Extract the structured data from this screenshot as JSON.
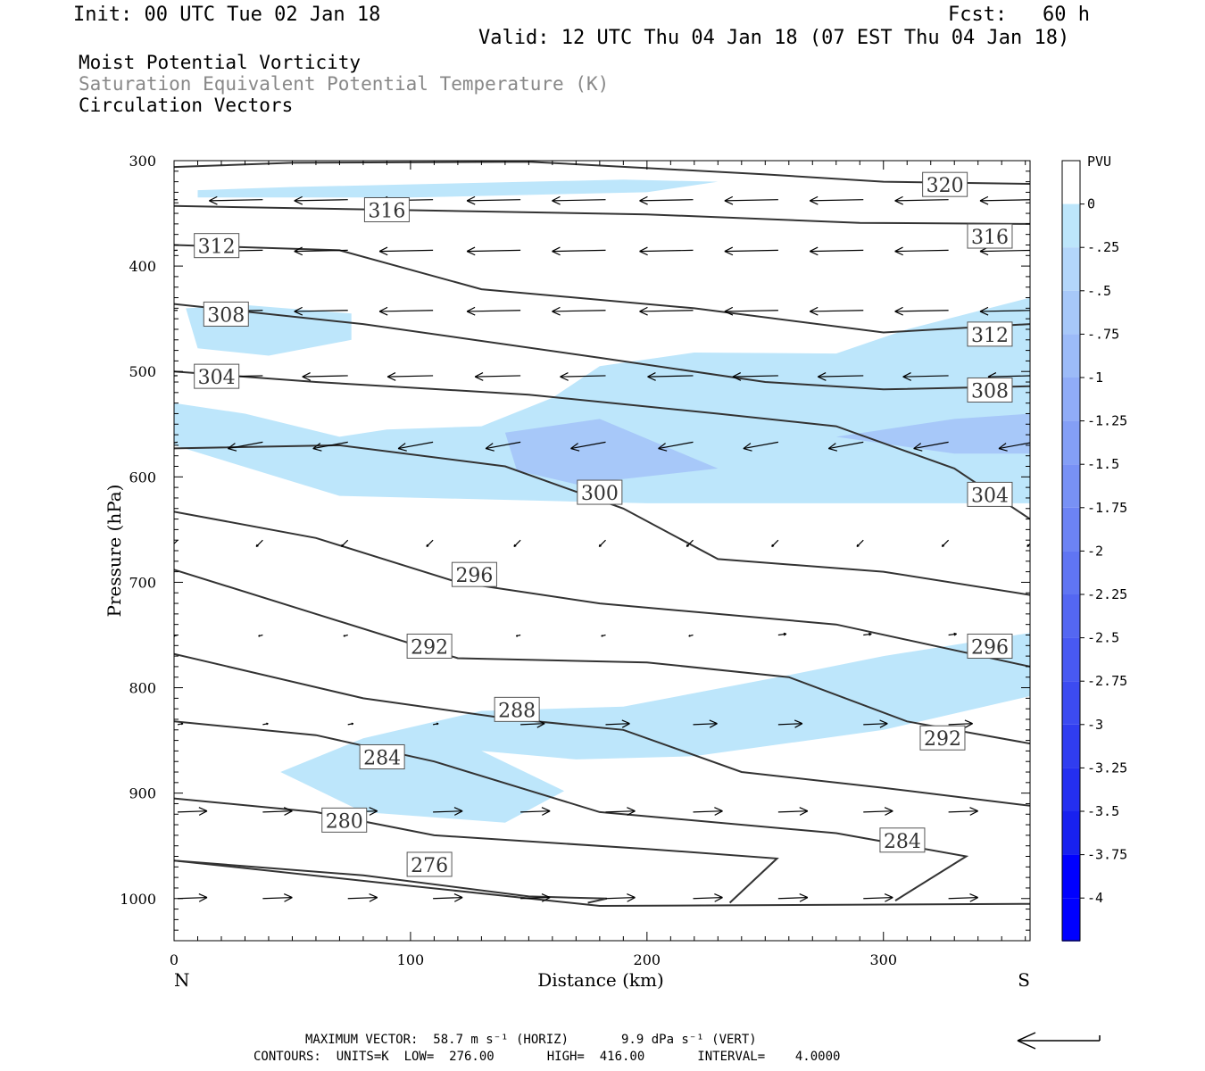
{
  "header": {
    "init": "Init: 00 UTC Tue 02 Jan 18",
    "fcst": "Fcst:   60 h",
    "valid": "Valid: 12 UTC Thu 04 Jan 18 (07 EST Thu 04 Jan 18)",
    "field1": "Moist Potential Vorticity",
    "field2": "Saturation Equivalent Potential Temperature (K)",
    "field3": "Circulation Vectors"
  },
  "footer": {
    "max_vector": "MAXIMUM VECTOR:  58.7 m s⁻¹ (HORIZ)       9.9 dPa s⁻¹ (VERT)",
    "contours": "CONTOURS:  UNITS=K  LOW=  276.00       HIGH=  416.00       INTERVAL=    4.0000"
  },
  "colors": {
    "mpv_shade_025": "#bde6fb",
    "mpv_shade_050": "#a7c8f9",
    "contour": "#333333",
    "vector": "#000000"
  },
  "chart_data": {
    "type": "cross-section",
    "xlabel": "Distance (km)",
    "ylabel": "Pressure (hPa)",
    "x_ticks": [
      0,
      100,
      200,
      300
    ],
    "y_ticks": [
      300,
      400,
      500,
      600,
      700,
      800,
      900,
      1000
    ],
    "xlim": [
      0,
      362
    ],
    "ylim": [
      300,
      1040
    ],
    "y_orientation": "pressure increases downward",
    "x_left_label": "N",
    "x_right_label": "S",
    "colorbar": {
      "title": "PVU",
      "levels": [
        "0",
        "-.25",
        "-.5",
        "-.75",
        "-1",
        "-1.25",
        "-1.5",
        "-1.75",
        "-2",
        "-2.25",
        "-2.5",
        "-2.75",
        "-3",
        "-3.25",
        "-3.5",
        "-3.75",
        "-4"
      ],
      "colors": [
        "#ffffff",
        "#bde6fb",
        "#b3d6fa",
        "#a7c8f9",
        "#9cbbf8",
        "#90acf7",
        "#849ff6",
        "#7891f5",
        "#6c83f4",
        "#6075f3",
        "#5467f2",
        "#4859f2",
        "#3c4bf1",
        "#303df0",
        "#242ff0",
        "#1821ef",
        "#0000ff"
      ]
    },
    "contour_interval": 4,
    "contours": [
      {
        "value": 320,
        "label": "320",
        "label_at": [
          326,
          323
        ],
        "points": [
          [
            0,
            306
          ],
          [
            50,
            302
          ],
          [
            150,
            301
          ],
          [
            250,
            313
          ],
          [
            300,
            320
          ],
          [
            362,
            322
          ]
        ]
      },
      {
        "value": 316,
        "label": "316",
        "label_at": [
          90,
          347
        ],
        "points": [
          [
            0,
            343
          ],
          [
            100,
            347
          ],
          [
            200,
            351
          ],
          [
            290,
            359
          ],
          [
            362,
            360
          ]
        ]
      },
      {
        "value": 316,
        "label": "316",
        "label_at": [
          345,
          372
        ],
        "points": []
      },
      {
        "value": 312,
        "label": "312",
        "label_at": [
          18,
          381
        ],
        "points": [
          [
            0,
            380
          ],
          [
            70,
            385
          ],
          [
            130,
            422
          ],
          [
            220,
            440
          ],
          [
            300,
            463
          ],
          [
            362,
            455
          ]
        ]
      },
      {
        "value": 308,
        "label": "308",
        "label_at": [
          22,
          446
        ],
        "points": [
          [
            0,
            436
          ],
          [
            80,
            455
          ],
          [
            180,
            487
          ],
          [
            250,
            510
          ],
          [
            300,
            517
          ],
          [
            362,
            514
          ]
        ]
      },
      {
        "value": 312,
        "label": "312",
        "label_at": [
          345,
          465
        ],
        "points": []
      },
      {
        "value": 304,
        "label": "304",
        "label_at": [
          18,
          505
        ],
        "points": [
          [
            0,
            500
          ],
          [
            60,
            510
          ],
          [
            150,
            522
          ],
          [
            230,
            540
          ],
          [
            280,
            552
          ],
          [
            330,
            592
          ],
          [
            362,
            640
          ]
        ]
      },
      {
        "value": 308,
        "label": "308",
        "label_at": [
          345,
          518
        ],
        "points": []
      },
      {
        "value": 300,
        "label": "300",
        "label_at": [
          180,
          615
        ],
        "points": [
          [
            0,
            573
          ],
          [
            70,
            570
          ],
          [
            140,
            590
          ],
          [
            190,
            630
          ],
          [
            230,
            678
          ],
          [
            300,
            690
          ],
          [
            362,
            712
          ]
        ]
      },
      {
        "value": 304,
        "label": "304",
        "label_at": [
          345,
          617
        ],
        "points": []
      },
      {
        "value": 296,
        "label": "296",
        "label_at": [
          127,
          693
        ],
        "points": [
          [
            0,
            633
          ],
          [
            60,
            658
          ],
          [
            120,
            700
          ],
          [
            180,
            720
          ],
          [
            280,
            740
          ],
          [
            362,
            780
          ]
        ]
      },
      {
        "value": 292,
        "label": "292",
        "label_at": [
          108,
          761
        ],
        "points": [
          [
            0,
            688
          ],
          [
            60,
            730
          ],
          [
            120,
            772
          ],
          [
            200,
            776
          ],
          [
            260,
            790
          ],
          [
            310,
            832
          ],
          [
            362,
            853
          ]
        ]
      },
      {
        "value": 296,
        "label": "296",
        "label_at": [
          345,
          761
        ],
        "points": []
      },
      {
        "value": 288,
        "label": "288",
        "label_at": [
          145,
          821
        ],
        "points": [
          [
            0,
            768
          ],
          [
            80,
            810
          ],
          [
            140,
            829
          ],
          [
            190,
            840
          ],
          [
            240,
            880
          ],
          [
            300,
            895
          ],
          [
            362,
            912
          ]
        ]
      },
      {
        "value": 292,
        "label": "292",
        "label_at": [
          325,
          848
        ],
        "points": []
      },
      {
        "value": 284,
        "label": "284",
        "label_at": [
          88,
          866
        ],
        "points": [
          [
            0,
            832
          ],
          [
            60,
            845
          ],
          [
            110,
            870
          ],
          [
            180,
            918
          ],
          [
            280,
            938
          ],
          [
            335,
            960
          ],
          [
            305,
            1002
          ]
        ]
      },
      {
        "value": 280,
        "label": "280",
        "label_at": [
          72,
          926
        ],
        "points": [
          [
            0,
            905
          ],
          [
            60,
            918
          ],
          [
            110,
            940
          ],
          [
            200,
            953
          ],
          [
            255,
            962
          ],
          [
            235,
            1004
          ]
        ]
      },
      {
        "value": 284,
        "label": "284",
        "label_at": [
          308,
          945
        ],
        "points": []
      },
      {
        "value": 276,
        "label": "276",
        "label_at": [
          108,
          968
        ],
        "points": [
          [
            0,
            964
          ],
          [
            80,
            978
          ],
          [
            150,
            998
          ],
          [
            183,
            1000
          ],
          [
            175,
            1004
          ]
        ]
      },
      {
        "value": 0,
        "label": "",
        "label_at": null,
        "points": [
          [
            0,
            964
          ],
          [
            100,
            988
          ],
          [
            180,
            1007
          ],
          [
            362,
            1005
          ]
        ]
      }
    ],
    "mpv_shading": [
      {
        "level": "-.25",
        "points": [
          [
            10,
            328
          ],
          [
            50,
            325
          ],
          [
            110,
            322
          ],
          [
            190,
            318
          ],
          [
            230,
            320
          ],
          [
            200,
            330
          ],
          [
            100,
            335
          ],
          [
            10,
            335
          ]
        ]
      },
      {
        "level": "-.25",
        "points": [
          [
            5,
            440
          ],
          [
            30,
            437
          ],
          [
            75,
            445
          ],
          [
            75,
            470
          ],
          [
            40,
            485
          ],
          [
            10,
            478
          ]
        ]
      },
      {
        "level": "-.25",
        "points": [
          [
            0,
            530
          ],
          [
            30,
            540
          ],
          [
            70,
            562
          ],
          [
            90,
            555
          ],
          [
            130,
            552
          ],
          [
            160,
            525
          ],
          [
            180,
            495
          ],
          [
            220,
            482
          ],
          [
            280,
            483
          ],
          [
            310,
            460
          ],
          [
            362,
            430
          ],
          [
            362,
            625
          ],
          [
            200,
            625
          ],
          [
            70,
            618
          ],
          [
            0,
            570
          ]
        ]
      },
      {
        "level": "-.75",
        "points": [
          [
            140,
            558
          ],
          [
            180,
            545
          ],
          [
            230,
            592
          ],
          [
            170,
            607
          ],
          [
            145,
            594
          ]
        ]
      },
      {
        "level": "-.75",
        "points": [
          [
            280,
            562
          ],
          [
            330,
            545
          ],
          [
            362,
            540
          ],
          [
            362,
            578
          ],
          [
            330,
            578
          ]
        ]
      },
      {
        "level": "-.25",
        "points": [
          [
            45,
            880
          ],
          [
            80,
            848
          ],
          [
            130,
            822
          ],
          [
            190,
            818
          ],
          [
            260,
            788
          ],
          [
            300,
            770
          ],
          [
            362,
            748
          ],
          [
            362,
            808
          ],
          [
            300,
            840
          ],
          [
            220,
            865
          ],
          [
            170,
            868
          ],
          [
            130,
            860
          ],
          [
            165,
            898
          ],
          [
            140,
            928
          ],
          [
            80,
            918
          ]
        ]
      }
    ],
    "vectors_note": "circulation vectors: arrows pointing mostly westward (leftward) aloft, weak near 650-800 hPa, eastward (rightward) in the lowest levels"
  }
}
